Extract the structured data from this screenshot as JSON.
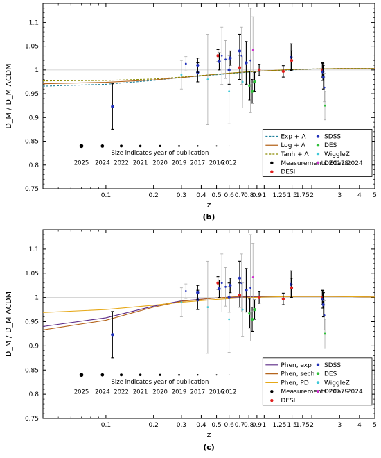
{
  "chart_data": [
    {
      "panel": "(b)",
      "type": "scatter",
      "xlabel": "z",
      "ylabel": "D_M / D_M ΛCDM",
      "xscale": "log",
      "xlim": [
        0.04,
        5
      ],
      "ylim": [
        0.75,
        1.14
      ],
      "xticks": [
        0.1,
        0.2,
        0.3,
        0.4,
        0.5,
        0.6,
        0.7,
        0.8,
        0.9,
        1,
        1.25,
        1.5,
        1.75,
        2,
        3,
        4,
        5
      ],
      "xtick_labels": [
        "0.1",
        "0.2",
        "0.3",
        "0.4",
        "0.5",
        "0.6",
        "0.7",
        "0.8",
        "0.9",
        "1",
        "1.25",
        "1.5",
        "1.75",
        "2",
        "3",
        "4",
        "5"
      ],
      "yticks": [
        0.75,
        0.8,
        0.85,
        0.9,
        0.95,
        1,
        1.05,
        1.1
      ],
      "ytick_labels": [
        "0.75",
        "0.8",
        "0.85",
        "0.9",
        "0.95",
        "1",
        "1.05",
        "1.1"
      ],
      "curves": [
        {
          "name": "Exp + Λ",
          "style": "dashed",
          "color": "#1f7f9a",
          "x": [
            0.04,
            0.1,
            0.2,
            0.3,
            0.5,
            0.7,
            1.0,
            1.5,
            2.0,
            3.0,
            5.0
          ],
          "y": [
            0.966,
            0.97,
            0.978,
            0.984,
            0.99,
            0.994,
            0.998,
            1.0,
            1.002,
            1.003,
            1.003
          ]
        },
        {
          "name": "Log + Λ",
          "style": "solid",
          "color": "#b5651d",
          "x": [
            0.04,
            0.1,
            0.2,
            0.3,
            0.5,
            0.7,
            1.0,
            1.5,
            2.0,
            3.0,
            5.0
          ],
          "y": [
            0.971,
            0.974,
            0.979,
            0.984,
            0.991,
            0.995,
            0.998,
            1.001,
            1.002,
            1.003,
            1.003
          ]
        },
        {
          "name": "Tanh + Λ",
          "style": "dashed",
          "color": "#8a8a00",
          "x": [
            0.04,
            0.1,
            0.2,
            0.3,
            0.5,
            0.7,
            1.0,
            1.5,
            2.0,
            3.0,
            5.0
          ],
          "y": [
            0.977,
            0.978,
            0.981,
            0.985,
            0.991,
            0.995,
            0.998,
            1.001,
            1.002,
            1.003,
            1.003
          ]
        }
      ],
      "points": [
        {
          "z": 0.11,
          "y": 0.923,
          "err": 0.048,
          "survey": "SDSS",
          "bold": true
        },
        {
          "z": 0.3,
          "y": 0.99,
          "err": 0.03,
          "survey": "WiggleZ",
          "bold": false
        },
        {
          "z": 0.32,
          "y": 1.013,
          "err": 0.015,
          "survey": "SDSS",
          "bold": false
        },
        {
          "z": 0.38,
          "y": 0.995,
          "err": 0.02,
          "survey": "SDSS",
          "bold": true
        },
        {
          "z": 0.38,
          "y": 1.01,
          "err": 0.015,
          "survey": "SDSS",
          "bold": true
        },
        {
          "z": 0.44,
          "y": 0.98,
          "err": 0.095,
          "survey": "WiggleZ",
          "bold": false
        },
        {
          "z": 0.51,
          "y": 1.03,
          "err": 0.013,
          "survey": "DESI",
          "bold": true
        },
        {
          "z": 0.52,
          "y": 1.018,
          "err": 0.018,
          "survey": "SDSS",
          "bold": true
        },
        {
          "z": 0.54,
          "y": 1.03,
          "err": 0.06,
          "survey": "SDSS",
          "bold": false
        },
        {
          "z": 0.57,
          "y": 1.022,
          "err": 0.04,
          "survey": "SDSS",
          "bold": false
        },
        {
          "z": 0.6,
          "y": 1.0,
          "err": 0.03,
          "survey": "SDSS",
          "bold": true
        },
        {
          "z": 0.6,
          "y": 0.955,
          "err": 0.068,
          "survey": "WiggleZ",
          "bold": false
        },
        {
          "z": 0.61,
          "y": 1.025,
          "err": 0.015,
          "survey": "SDSS",
          "bold": true
        },
        {
          "z": 0.7,
          "y": 1.04,
          "err": 0.035,
          "survey": "SDSS",
          "bold": true
        },
        {
          "z": 0.7,
          "y": 1.005,
          "err": 0.025,
          "survey": "DESI",
          "bold": true
        },
        {
          "z": 0.72,
          "y": 1.03,
          "err": 0.06,
          "survey": "SDSS",
          "bold": false
        },
        {
          "z": 0.73,
          "y": 0.975,
          "err": 0.055,
          "survey": "WiggleZ",
          "bold": false
        },
        {
          "z": 0.77,
          "y": 1.015,
          "err": 0.045,
          "survey": "SDSS",
          "bold": true
        },
        {
          "z": 0.81,
          "y": 0.967,
          "err": 0.03,
          "survey": "DES",
          "bold": true
        },
        {
          "z": 0.82,
          "y": 1.02,
          "err": 0.11,
          "survey": "SDSS",
          "bold": false
        },
        {
          "z": 0.84,
          "y": 0.955,
          "err": 0.025,
          "survey": "DES",
          "bold": true
        },
        {
          "z": 0.85,
          "y": 1.042,
          "err": 0.07,
          "survey": "DECaLS",
          "bold": false
        },
        {
          "z": 0.87,
          "y": 0.975,
          "err": 0.02,
          "survey": "DES",
          "bold": true
        },
        {
          "z": 0.93,
          "y": 1.0,
          "err": 0.012,
          "survey": "DESI",
          "bold": true
        },
        {
          "z": 1.32,
          "y": 0.997,
          "err": 0.012,
          "survey": "DESI",
          "bold": true
        },
        {
          "z": 1.48,
          "y": 1.027,
          "err": 0.028,
          "survey": "SDSS",
          "bold": true
        },
        {
          "z": 1.49,
          "y": 1.02,
          "err": 0.02,
          "survey": "DESI",
          "bold": true
        },
        {
          "z": 2.33,
          "y": 1.0,
          "err": 0.015,
          "survey": "DESI",
          "bold": true
        },
        {
          "z": 2.35,
          "y": 0.996,
          "err": 0.018,
          "survey": "SDSS",
          "bold": true
        },
        {
          "z": 2.37,
          "y": 0.985,
          "err": 0.025,
          "survey": "SDSS",
          "bold": true
        },
        {
          "z": 2.4,
          "y": 0.963,
          "err": 0.03,
          "survey": "SDSS",
          "bold": false
        },
        {
          "z": 2.42,
          "y": 0.925,
          "err": 0.03,
          "survey": "DES",
          "bold": false
        }
      ],
      "year_note": "Size indicates year of publication",
      "years": [
        "2025",
        "2024",
        "2022",
        "2021",
        "2020",
        "2019",
        "2017",
        "2016",
        "2012"
      ],
      "legend_left": [
        "Exp + Λ",
        "Log + Λ",
        "Tanh + Λ",
        "Measurements 2017-2024",
        "DESI"
      ],
      "legend_right": [
        "SDSS",
        "DES",
        "WiggleZ",
        "DECaLS"
      ]
    },
    {
      "panel": "(c)",
      "type": "scatter",
      "xlabel": "z",
      "ylabel": "D_M / D_M ΛCDM",
      "xscale": "log",
      "xlim": [
        0.04,
        5
      ],
      "ylim": [
        0.75,
        1.14
      ],
      "xticks": [
        0.1,
        0.2,
        0.3,
        0.4,
        0.5,
        0.6,
        0.7,
        0.8,
        0.9,
        1,
        1.25,
        1.5,
        1.75,
        2,
        3,
        4,
        5
      ],
      "xtick_labels": [
        "0.1",
        "0.2",
        "0.3",
        "0.4",
        "0.5",
        "0.6",
        "0.7",
        "0.8",
        "0.9",
        "1",
        "1.25",
        "1.5",
        "1.75",
        "2",
        "3",
        "4",
        "5"
      ],
      "yticks": [
        0.75,
        0.8,
        0.85,
        0.9,
        0.95,
        1,
        1.05,
        1.1
      ],
      "ytick_labels": [
        "0.75",
        "0.8",
        "0.85",
        "0.9",
        "0.95",
        "1",
        "1.05",
        "1.1"
      ],
      "curves": [
        {
          "name": "Phen, exp",
          "style": "solid",
          "color": "#5b2a86",
          "x": [
            0.04,
            0.1,
            0.15,
            0.2,
            0.3,
            0.5,
            0.7,
            1.0,
            1.5,
            2.0,
            3.0,
            5.0
          ],
          "y": [
            0.94,
            0.958,
            0.972,
            0.982,
            0.993,
            0.999,
            1.001,
            1.002,
            1.002,
            1.002,
            1.002,
            1.001
          ]
        },
        {
          "name": "Phen, sech",
          "style": "solid",
          "color": "#b5651d",
          "x": [
            0.04,
            0.1,
            0.15,
            0.2,
            0.3,
            0.5,
            0.7,
            1.0,
            1.5,
            2.0,
            3.0,
            5.0
          ],
          "y": [
            0.933,
            0.953,
            0.969,
            0.98,
            0.992,
            0.999,
            1.002,
            1.003,
            1.003,
            1.003,
            1.002,
            1.001
          ]
        },
        {
          "name": "Phen, PD",
          "style": "solid",
          "color": "#e6a817",
          "x": [
            0.04,
            0.1,
            0.2,
            0.3,
            0.5,
            0.7,
            1.0,
            1.5,
            2.0,
            3.0,
            5.0
          ],
          "y": [
            0.969,
            0.975,
            0.984,
            0.99,
            0.996,
            0.999,
            1.001,
            1.002,
            1.002,
            1.002,
            1.001
          ]
        }
      ],
      "points": [
        {
          "z": 0.11,
          "y": 0.923,
          "err": 0.048,
          "survey": "SDSS",
          "bold": true
        },
        {
          "z": 0.3,
          "y": 0.99,
          "err": 0.03,
          "survey": "WiggleZ",
          "bold": false
        },
        {
          "z": 0.32,
          "y": 1.013,
          "err": 0.015,
          "survey": "SDSS",
          "bold": false
        },
        {
          "z": 0.38,
          "y": 0.995,
          "err": 0.02,
          "survey": "SDSS",
          "bold": true
        },
        {
          "z": 0.38,
          "y": 1.01,
          "err": 0.015,
          "survey": "SDSS",
          "bold": true
        },
        {
          "z": 0.44,
          "y": 0.98,
          "err": 0.095,
          "survey": "WiggleZ",
          "bold": false
        },
        {
          "z": 0.51,
          "y": 1.03,
          "err": 0.013,
          "survey": "DESI",
          "bold": true
        },
        {
          "z": 0.52,
          "y": 1.018,
          "err": 0.018,
          "survey": "SDSS",
          "bold": true
        },
        {
          "z": 0.54,
          "y": 1.03,
          "err": 0.06,
          "survey": "SDSS",
          "bold": false
        },
        {
          "z": 0.57,
          "y": 1.022,
          "err": 0.04,
          "survey": "SDSS",
          "bold": false
        },
        {
          "z": 0.6,
          "y": 1.0,
          "err": 0.03,
          "survey": "SDSS",
          "bold": true
        },
        {
          "z": 0.6,
          "y": 0.955,
          "err": 0.068,
          "survey": "WiggleZ",
          "bold": false
        },
        {
          "z": 0.61,
          "y": 1.025,
          "err": 0.015,
          "survey": "SDSS",
          "bold": true
        },
        {
          "z": 0.7,
          "y": 1.04,
          "err": 0.035,
          "survey": "SDSS",
          "bold": true
        },
        {
          "z": 0.7,
          "y": 1.005,
          "err": 0.025,
          "survey": "DESI",
          "bold": true
        },
        {
          "z": 0.72,
          "y": 1.03,
          "err": 0.06,
          "survey": "SDSS",
          "bold": false
        },
        {
          "z": 0.73,
          "y": 0.975,
          "err": 0.055,
          "survey": "WiggleZ",
          "bold": false
        },
        {
          "z": 0.77,
          "y": 1.015,
          "err": 0.045,
          "survey": "SDSS",
          "bold": true
        },
        {
          "z": 0.81,
          "y": 0.967,
          "err": 0.03,
          "survey": "DES",
          "bold": true
        },
        {
          "z": 0.82,
          "y": 1.02,
          "err": 0.11,
          "survey": "SDSS",
          "bold": false
        },
        {
          "z": 0.84,
          "y": 0.955,
          "err": 0.025,
          "survey": "DES",
          "bold": true
        },
        {
          "z": 0.85,
          "y": 1.042,
          "err": 0.07,
          "survey": "DECaLS",
          "bold": false
        },
        {
          "z": 0.87,
          "y": 0.975,
          "err": 0.02,
          "survey": "DES",
          "bold": true
        },
        {
          "z": 0.93,
          "y": 1.0,
          "err": 0.012,
          "survey": "DESI",
          "bold": true
        },
        {
          "z": 1.32,
          "y": 0.997,
          "err": 0.012,
          "survey": "DESI",
          "bold": true
        },
        {
          "z": 1.48,
          "y": 1.027,
          "err": 0.028,
          "survey": "SDSS",
          "bold": true
        },
        {
          "z": 1.49,
          "y": 1.02,
          "err": 0.02,
          "survey": "DESI",
          "bold": true
        },
        {
          "z": 2.33,
          "y": 1.0,
          "err": 0.015,
          "survey": "DESI",
          "bold": true
        },
        {
          "z": 2.35,
          "y": 0.996,
          "err": 0.018,
          "survey": "SDSS",
          "bold": true
        },
        {
          "z": 2.37,
          "y": 0.985,
          "err": 0.025,
          "survey": "SDSS",
          "bold": true
        },
        {
          "z": 2.4,
          "y": 0.963,
          "err": 0.03,
          "survey": "SDSS",
          "bold": false
        },
        {
          "z": 2.42,
          "y": 0.925,
          "err": 0.03,
          "survey": "DES",
          "bold": false
        }
      ],
      "year_note": "Size indicates year of publication",
      "years": [
        "2025",
        "2024",
        "2022",
        "2021",
        "2020",
        "2019",
        "2017",
        "2016",
        "2012"
      ],
      "legend_left": [
        "Phen, exp",
        "Phen, sech",
        "Phen, PD",
        "Measurements 2017-2024",
        "DESI"
      ],
      "legend_right": [
        "SDSS",
        "DES",
        "WiggleZ",
        "DECaLS"
      ]
    }
  ],
  "colors": {
    "SDSS": "#1f2fb8",
    "DES": "#2fbf3a",
    "WiggleZ": "#3fc8d8",
    "DECaLS": "#d02fd0",
    "DESI": "#e0201f",
    "Measurements": "#000000",
    "old_measurement": "#aaaaaa",
    "reference_line": "#c8c8c8"
  }
}
